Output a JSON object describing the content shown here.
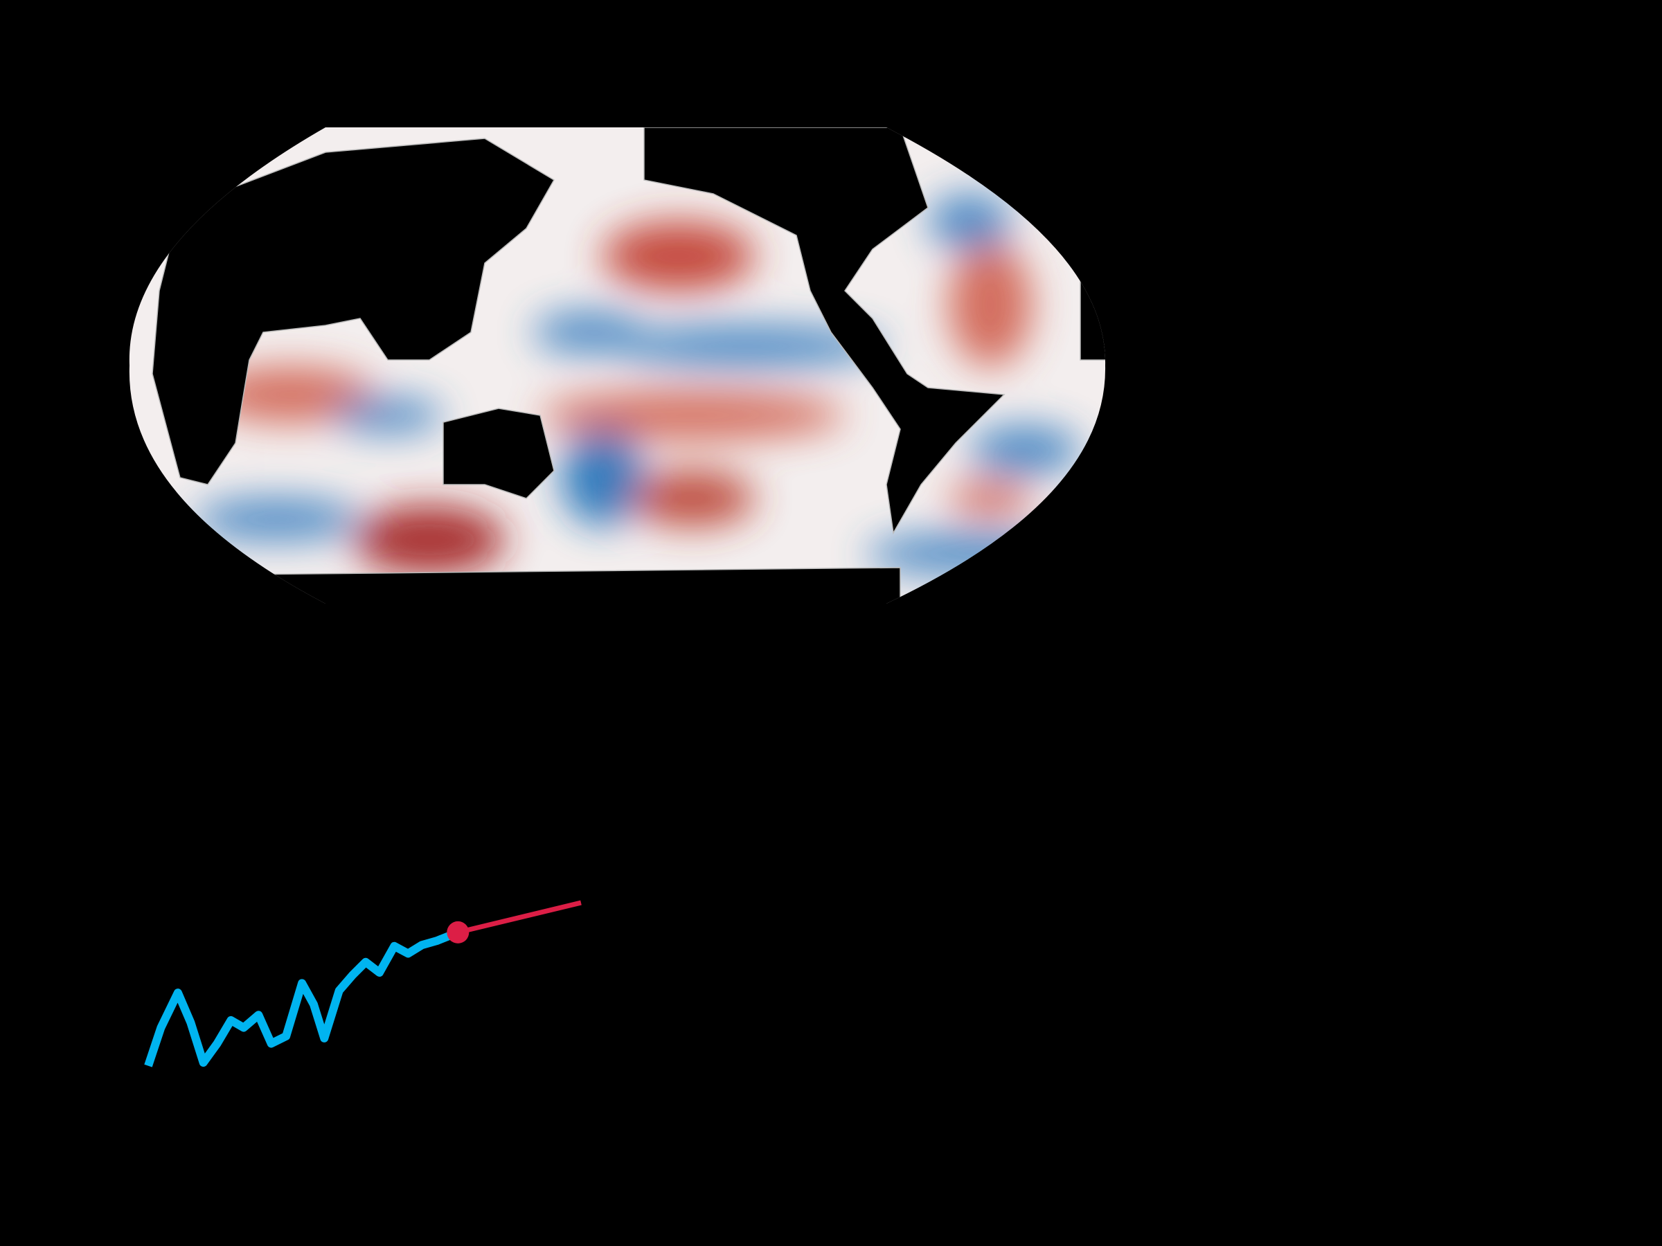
{
  "chart_data": {
    "type": "line",
    "xlim": [
      0,
      408
    ],
    "ylim": [
      0,
      200
    ],
    "series": [
      {
        "color": "#00b4f0",
        "x": [
          0,
          12,
          28,
          40,
          52,
          65,
          78,
          90,
          104,
          116,
          130,
          145,
          156,
          166,
          180,
          193,
          205,
          218,
          232,
          245,
          258,
          272,
          292
        ],
        "values": [
          44,
          80,
          113,
          85,
          47,
          65,
          87,
          80,
          92,
          65,
          72,
          122,
          102,
          70,
          115,
          130,
          142,
          132,
          157,
          150,
          158,
          162,
          170
        ]
      },
      {
        "color": "#dc1e46",
        "x": [
          292,
          408
        ],
        "values": [
          170,
          198
        ]
      }
    ]
  }
}
